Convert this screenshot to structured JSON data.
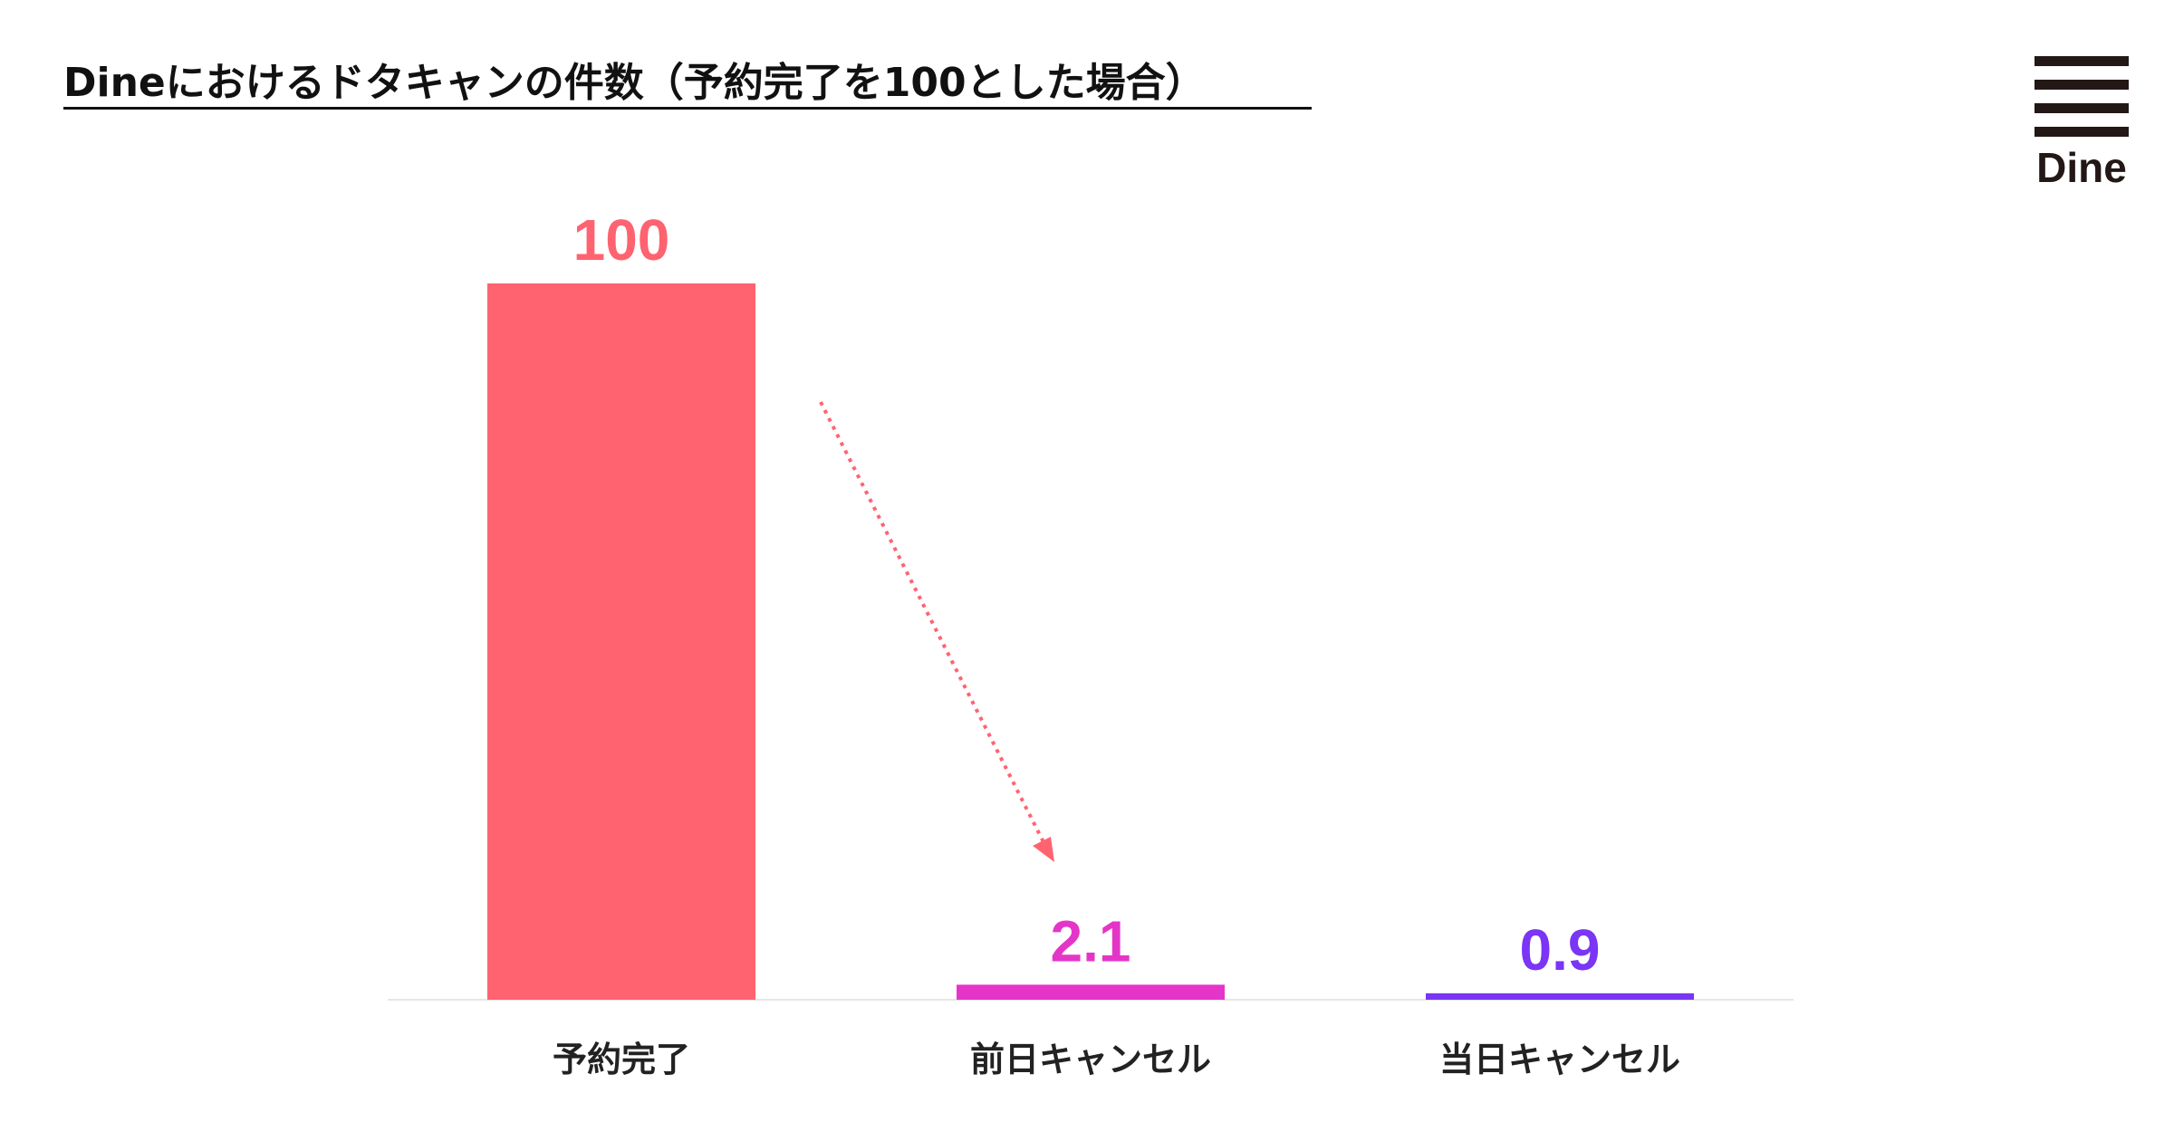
{
  "header": {
    "title": "Dineにおけるドタキャンの件数（予約完了を100とした場合）"
  },
  "logo": {
    "text": "Dine",
    "color": "#231815"
  },
  "chart_data": {
    "type": "bar",
    "title": "Dineにおけるドタキャンの件数（予約完了を100とした場合）",
    "categories": [
      "予約完了",
      "前日キャンセル",
      "当日キャンセル"
    ],
    "values": [
      100,
      2.1,
      0.9
    ],
    "value_labels": [
      "100",
      "2.1",
      "0.9"
    ],
    "colors": [
      "#FF6370",
      "#E535C8",
      "#7A35F5"
    ],
    "ylim": [
      0,
      100
    ],
    "grid": false,
    "legend": "none",
    "annotation": "dotted arrow from 予約完了 bar pointing down to 前日キャンセル bar",
    "arrow_color": "#FF6370"
  }
}
